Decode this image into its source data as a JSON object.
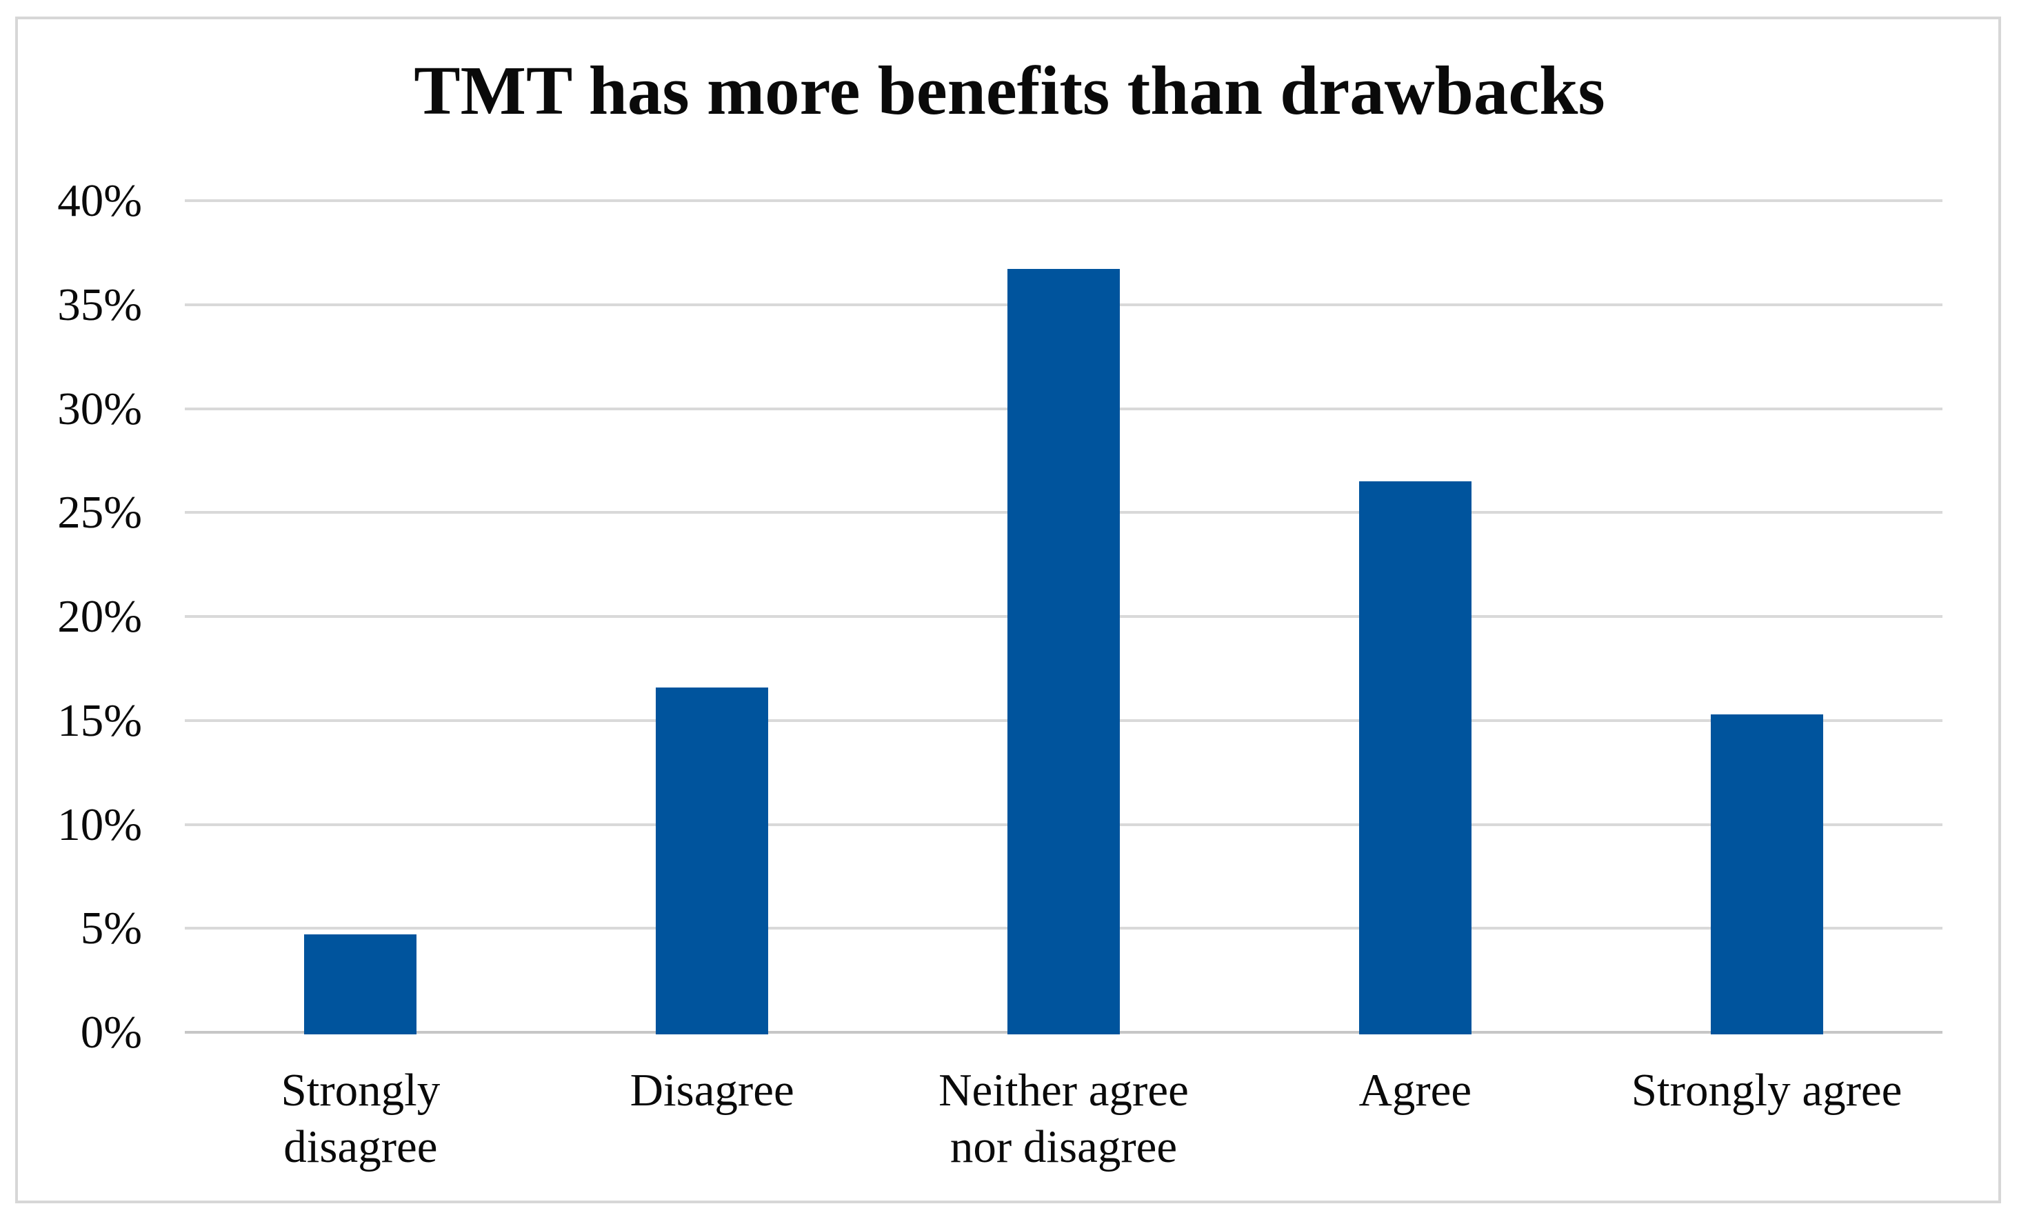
{
  "figure": {
    "kind": "standalone bar chart figure with light gray outer border"
  },
  "chart_data": {
    "type": "bar",
    "title": "TMT has more benefits than drawbacks",
    "categories": [
      "Strongly disagree",
      "Disagree",
      "Neither agree nor disagree",
      "Agree",
      "Strongly agree"
    ],
    "category_display": [
      "Strongly\ndisagree",
      "Disagree",
      "Neither agree\nnor disagree",
      "Agree",
      "Strongly agree"
    ],
    "values": [
      4.7,
      16.6,
      36.7,
      26.5,
      15.3
    ],
    "value_unit": "%",
    "xlabel": "",
    "ylabel": "",
    "ylim": [
      0,
      40
    ],
    "ytick_step": 5,
    "ytick_labels": [
      "0%",
      "5%",
      "10%",
      "15%",
      "20%",
      "25%",
      "30%",
      "35%",
      "40%"
    ],
    "grid": "horizontal gridlines on",
    "legend": "none",
    "data_labels": "none",
    "colors": {
      "bar": "#00549d",
      "gridline": "#d9d9d9",
      "baseline": "#c6c6c6",
      "figure_border": "#d7d7d7",
      "text": "#0a0a0a",
      "background": "#ffffff"
    }
  }
}
